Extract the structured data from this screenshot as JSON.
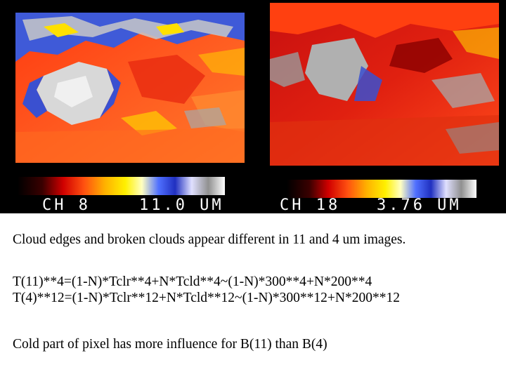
{
  "panels": [
    {
      "channel_label": "CH 8    11.0 UM"
    },
    {
      "channel_label": "CH 18   3.76 UM"
    }
  ],
  "text": {
    "line1": "Cloud edges and broken clouds appear different in 11 and 4 um images.",
    "line2": "T(11)**4=(1-N)*Tclr**4+N*Tcld**4~(1-N)*300**4+N*200**4",
    "line3": "T(4)**12=(1-N)*Tclr**12+N*Tcld**12~(1-N)*300**12+N*200**12",
    "line4": "Cold part of pixel has more influence for B(11) than B(4)"
  },
  "colors": {
    "background": "#ffffff",
    "panel": "#000000",
    "warm": "#ff4a1a",
    "hot": "#c00000",
    "cloud_gray": "#b8b8b8",
    "cloud_blue": "#3050e0",
    "label": "#ffffff"
  }
}
